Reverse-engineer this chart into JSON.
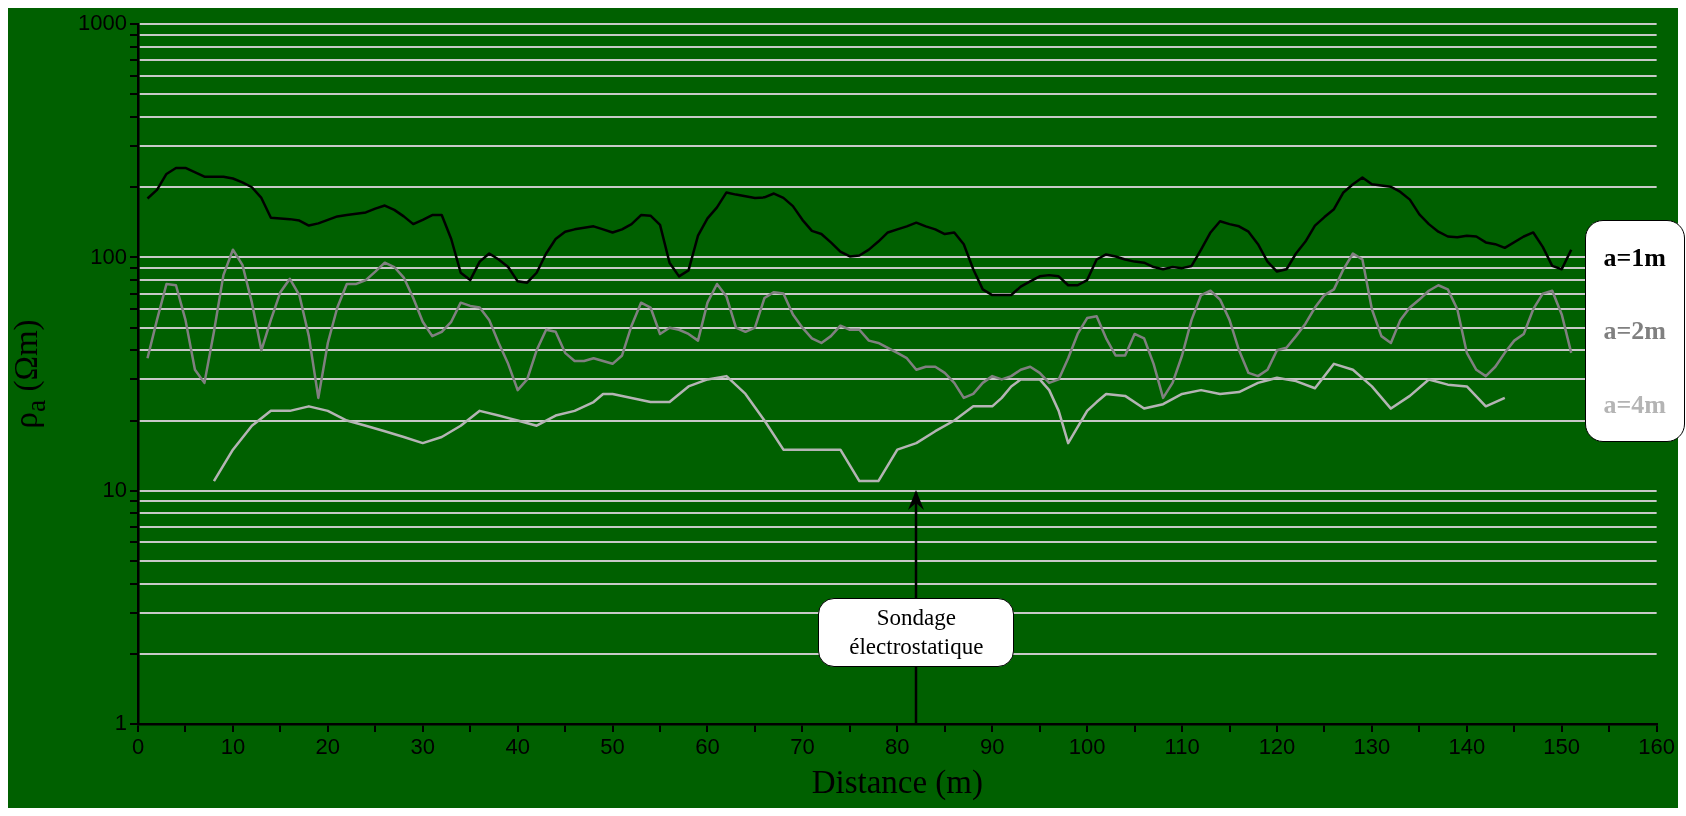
{
  "chart_data": {
    "type": "line",
    "xlabel": "Distance (m)",
    "ylabel": "ρ$_{a}$ (Ωm)",
    "log": "y",
    "grid": "y",
    "legend": "right",
    "marker": "none",
    "line_style": "solid",
    "xlim": [
      0,
      160
    ],
    "xticks": [
      0,
      {
        "value": 5,
        "label": null
      },
      10,
      {
        "value": 15,
        "label": null
      },
      20,
      {
        "value": 25,
        "label": null
      },
      30,
      {
        "value": 35,
        "label": null
      },
      40,
      {
        "value": 45,
        "label": null
      },
      50,
      {
        "value": 55,
        "label": null
      },
      60,
      {
        "value": 65,
        "label": null
      },
      70,
      {
        "value": 75,
        "label": null
      },
      80,
      {
        "value": 85,
        "label": null
      },
      90,
      {
        "value": 95,
        "label": null
      },
      100,
      {
        "value": 105,
        "label": null
      },
      110,
      {
        "value": 115,
        "label": null
      },
      120,
      {
        "value": 125,
        "label": null
      },
      130,
      {
        "value": 135,
        "label": null
      },
      140,
      {
        "value": 145,
        "label": null
      },
      150,
      {
        "value": 155,
        "label": null
      },
      160
    ],
    "ylim": [
      1,
      1000
    ],
    "yticks": [
      1,
      {
        "value": 2,
        "label": null
      },
      {
        "value": 3,
        "label": null
      },
      {
        "value": 4,
        "label": null
      },
      {
        "value": 5,
        "label": null
      },
      {
        "value": 6,
        "label": null
      },
      {
        "value": 7,
        "label": null
      },
      {
        "value": 8,
        "label": null
      },
      {
        "value": 9,
        "label": null
      },
      10,
      {
        "value": 20,
        "label": null
      },
      {
        "value": 30,
        "label": null
      },
      {
        "value": 40,
        "label": null
      },
      {
        "value": 50,
        "label": null
      },
      {
        "value": 60,
        "label": null
      },
      {
        "value": 70,
        "label": null
      },
      {
        "value": 80,
        "label": null
      },
      {
        "value": 90,
        "label": null
      },
      100,
      {
        "value": 200,
        "label": null
      },
      {
        "value": 300,
        "label": null
      },
      {
        "value": 400,
        "label": null
      },
      {
        "value": 500,
        "label": null
      },
      {
        "value": 600,
        "label": null
      },
      {
        "value": 700,
        "label": null
      },
      {
        "value": 800,
        "label": null
      },
      {
        "value": 900,
        "label": null
      },
      1000
    ],
    "annotations": [
      "Sondage électrostatique"
    ],
    "series": [
      {
        "name": "a=1m",
        "color": "#000000",
        "x": [
          1,
          2,
          3,
          4,
          5,
          7,
          9,
          10,
          11,
          12,
          13,
          14,
          15,
          16,
          17,
          18,
          19,
          21,
          22,
          24,
          25,
          26,
          27,
          28,
          29,
          30,
          31,
          32,
          33,
          34,
          35,
          36,
          37,
          38,
          39,
          40,
          41,
          42,
          43,
          44,
          45,
          46,
          48,
          49,
          50,
          51,
          52,
          53,
          54,
          55,
          56,
          57,
          58,
          59,
          60,
          61,
          62,
          63,
          65,
          66,
          67,
          68,
          69,
          70,
          71,
          72,
          73,
          74,
          75,
          76,
          77,
          78,
          79,
          80,
          81,
          82,
          83,
          84,
          85,
          86,
          87,
          88,
          89,
          90,
          91,
          92,
          93,
          94,
          95,
          96,
          97,
          98,
          99,
          100,
          101,
          102,
          103,
          104,
          105,
          106,
          107,
          108,
          109,
          110,
          111,
          112,
          113,
          114,
          115,
          116,
          117,
          118,
          119,
          120,
          121,
          122,
          123,
          124,
          125,
          126,
          127,
          128,
          129,
          130,
          132,
          133,
          134,
          135,
          136,
          137,
          138,
          139,
          140,
          141,
          142,
          143,
          144,
          146,
          147,
          148,
          149,
          150,
          151
        ],
        "values": [
          179,
          195,
          228,
          242,
          242,
          222,
          222,
          218,
          210,
          200,
          180,
          148,
          147,
          146,
          144,
          137,
          140,
          150,
          152,
          156,
          162,
          167,
          160,
          150,
          139,
          145,
          152,
          152,
          120,
          86,
          80,
          96,
          104,
          98,
          91,
          79,
          78,
          86,
          104,
          120,
          129,
          132,
          136,
          132,
          128,
          132,
          139,
          152,
          151,
          138,
          95,
          83,
          88,
          124,
          147,
          164,
          190,
          186,
          180,
          181,
          188,
          180,
          166,
          145,
          130,
          126,
          116,
          106,
          101,
          102,
          108,
          117,
          128,
          132,
          136,
          141,
          136,
          132,
          126,
          128,
          114,
          89,
          73,
          69,
          69,
          69,
          75,
          79,
          83,
          84,
          83,
          76,
          76,
          80,
          98,
          103,
          101,
          98,
          96,
          95,
          91,
          89,
          91,
          90,
          92,
          108,
          128,
          143,
          139,
          136,
          129,
          114,
          96,
          87,
          89,
          104,
          117,
          137,
          149,
          161,
          190,
          206,
          220,
          206,
          201,
          191,
          177,
          153,
          139,
          129,
          123,
          122,
          124,
          123,
          116,
          114,
          110,
          123,
          128,
          111,
          92,
          89,
          108
        ]
      },
      {
        "name": "a=2m",
        "color": "#808080",
        "x": [
          1,
          2,
          3,
          4,
          5,
          6,
          7,
          8,
          9,
          10,
          11,
          12,
          13,
          14,
          15,
          16,
          17,
          18,
          19,
          20,
          21,
          22,
          23,
          24,
          25,
          26,
          27,
          28,
          29,
          30,
          31,
          32,
          33,
          34,
          35,
          36,
          37,
          38,
          39,
          40,
          41,
          42,
          43,
          44,
          45,
          46,
          47,
          48,
          49,
          50,
          51,
          52,
          53,
          54,
          55,
          56,
          57,
          58,
          59,
          60,
          61,
          62,
          63,
          64,
          65,
          66,
          67,
          68,
          69,
          70,
          71,
          72,
          73,
          74,
          75,
          76,
          77,
          78,
          79,
          80,
          81,
          82,
          83,
          84,
          85,
          86,
          87,
          88,
          89,
          90,
          91,
          92,
          93,
          94,
          95,
          96,
          97,
          98,
          99,
          100,
          101,
          102,
          103,
          104,
          105,
          106,
          107,
          108,
          109,
          110,
          111,
          112,
          113,
          114,
          115,
          116,
          117,
          118,
          119,
          120,
          121,
          122,
          123,
          124,
          125,
          126,
          127,
          128,
          129,
          130,
          131,
          132,
          133,
          134,
          135,
          136,
          137,
          138,
          139,
          140,
          141,
          142,
          143,
          144,
          145,
          146,
          147,
          148,
          149,
          150,
          151
        ],
        "values": [
          37,
          54,
          77,
          76,
          54,
          33,
          29,
          48,
          84,
          108,
          93,
          64,
          40,
          54,
          71,
          81,
          69,
          46,
          25,
          43,
          61,
          77,
          77,
          80,
          87,
          95,
          91,
          82,
          67,
          53,
          46,
          48,
          53,
          64,
          62,
          61,
          54,
          43,
          35,
          27,
          30,
          40,
          49,
          48,
          39,
          36,
          36,
          37,
          36,
          35,
          38,
          51,
          64,
          61,
          47,
          50,
          49,
          47,
          44,
          64,
          77,
          68,
          50,
          48,
          50,
          67,
          71,
          70,
          57,
          50,
          45,
          43,
          46,
          51,
          49,
          49,
          44,
          43,
          41,
          39,
          37,
          33,
          34,
          34,
          32,
          29,
          25,
          26,
          29,
          31,
          30,
          31,
          33,
          34,
          32,
          29,
          30,
          37,
          47,
          55,
          56,
          45,
          38,
          38,
          47,
          45,
          35,
          25,
          29,
          38,
          54,
          69,
          72,
          66,
          54,
          40,
          32,
          31,
          33,
          40,
          41,
          46,
          52,
          61,
          69,
          73,
          89,
          104,
          98,
          60,
          46,
          43,
          54,
          61,
          66,
          72,
          76,
          73,
          60,
          39,
          33,
          31,
          34,
          39,
          44,
          47,
          60,
          70,
          72,
          57,
          39
        ]
      },
      {
        "name": "a=4m",
        "color": "#b4b4b4",
        "x": [
          8,
          10,
          12,
          14,
          16,
          18,
          20,
          22,
          24,
          26,
          28,
          30,
          32,
          34,
          36,
          38,
          40,
          42,
          44,
          46,
          48,
          49,
          50,
          52,
          54,
          56,
          58,
          60,
          62,
          64,
          66,
          68,
          70,
          72,
          74,
          76,
          78,
          80,
          82,
          84,
          86,
          88,
          90,
          91,
          92,
          93,
          95,
          96,
          97,
          98,
          100,
          101,
          102,
          104,
          106,
          108,
          110,
          112,
          114,
          116,
          118,
          120,
          122,
          124,
          126,
          128,
          130,
          132,
          134,
          136,
          138,
          140,
          142,
          144
        ],
        "values": [
          11,
          15,
          19,
          22,
          22,
          23,
          22,
          20,
          19,
          18,
          17,
          16,
          17,
          19,
          22,
          21,
          20,
          19,
          21,
          22,
          24,
          26,
          26,
          25,
          24,
          24,
          28,
          30,
          31,
          26,
          20,
          15,
          15,
          15,
          15,
          11,
          11,
          15,
          16,
          18,
          20,
          23,
          23,
          25,
          28,
          30,
          30,
          27,
          22,
          16,
          22,
          24,
          26,
          25.5,
          22.5,
          23.5,
          26,
          27,
          26,
          26.5,
          29,
          30.5,
          29.5,
          27.5,
          35,
          33,
          28,
          22.5,
          25.5,
          30,
          28.5,
          28,
          23,
          25
        ]
      }
    ]
  }
}
